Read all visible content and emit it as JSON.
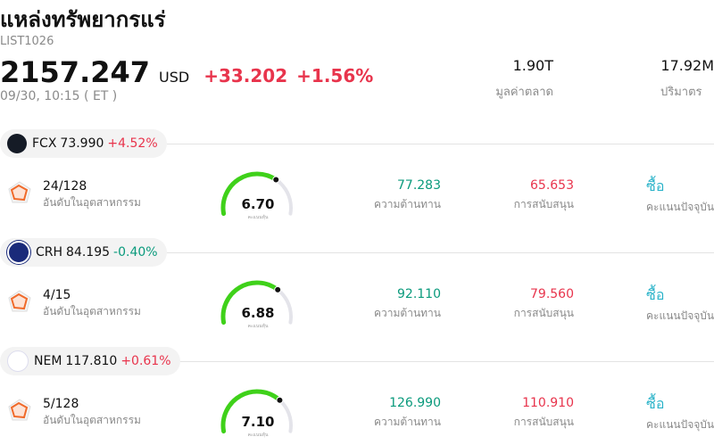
{
  "header": {
    "title": "แหล่งทรัพยากรแร่",
    "code": "LIST1026",
    "price": "2157.247",
    "currency": "USD",
    "change": "+33.202",
    "change_pct": "+1.56%",
    "time": "09/30, 10:15 ( ET )",
    "stats": [
      {
        "value": "1.90T",
        "label": "มูลค่าตลาด"
      },
      {
        "value": "17.92M",
        "label": "ปริมาตร"
      }
    ]
  },
  "score_range": [
    0,
    10
  ],
  "stocks": [
    {
      "ticker": "FCX",
      "price": "73.990",
      "change": "+4.52%",
      "color": "#e8344c",
      "rank": "24/128",
      "rank_label": "อันดับในอุตสาหกรรม",
      "score": {
        "value": 6.7,
        "label": "6.70"
      },
      "score_label": "คะแนนหุ้น",
      "resistance": "77.283",
      "resistance_label": "ความต้านทาน",
      "support": "65.653",
      "support_label": "การสนับสนุน",
      "action": "ซื้อ",
      "action_label": "คะแนนปัจจุบัน"
    },
    {
      "ticker": "CRH",
      "price": "84.195",
      "change": "-0.40%",
      "color": "#0a9a7c",
      "rank": "4/15",
      "rank_label": "อันดับในอุตสาหกรรม",
      "score": {
        "value": 6.88,
        "label": "6.88"
      },
      "score_label": "คะแนนหุ้น",
      "resistance": "92.110",
      "resistance_label": "ความต้านทาน",
      "support": "79.560",
      "support_label": "การสนับสนุน",
      "action": "ซื้อ",
      "action_label": "คะแนนปัจจุบัน"
    },
    {
      "ticker": "NEM",
      "price": "117.810",
      "change": "+0.61%",
      "color": "#e8344c",
      "rank": "5/128",
      "rank_label": "อันดับในอุตสาหกรรม",
      "score": {
        "value": 7.1,
        "label": "7.10"
      },
      "score_label": "คะแนนหุ้น",
      "resistance": "126.990",
      "resistance_label": "ความต้านทาน",
      "support": "110.910",
      "support_label": "การสนับสนุน",
      "action": "ซื้อ",
      "action_label": "คะแนนปัจจุบัน"
    }
  ]
}
